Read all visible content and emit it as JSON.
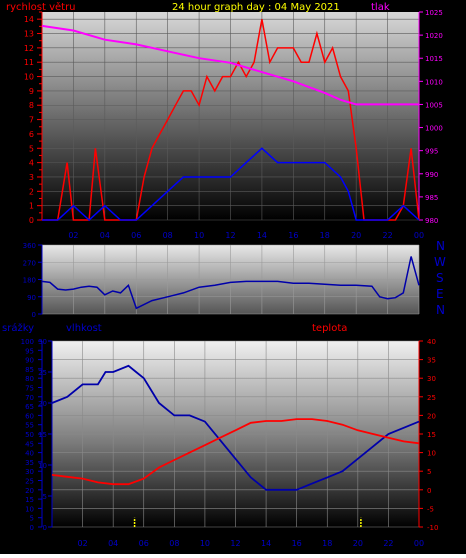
{
  "header": {
    "title": "24 hour graph day : 04 May 2021",
    "left_label": "rychlost větru",
    "right_label": "tlak"
  },
  "panel2": {
    "compass": [
      "N",
      "W",
      "S",
      "E",
      "N"
    ]
  },
  "panel3": {
    "rain_label": "srážky",
    "humidity_label": "vlhkost",
    "temp_label": "teplota"
  },
  "colors": {
    "wind": "#ff0000",
    "gust": "#0000ff",
    "pressure": "#ff00ff",
    "direction": "#0000aa",
    "humidity": "#0000aa",
    "temperature": "#ff0000",
    "rain": "#ffff00",
    "axis_left": "#ff0000",
    "axis_right": "#ff00ff",
    "axis_blue": "#0000cc"
  },
  "chart_data": [
    {
      "type": "line",
      "series": [
        {
          "name": "rychlost větru",
          "x": [
            0,
            1,
            1.6,
            2,
            3,
            3.4,
            4,
            5,
            6,
            6.5,
            7,
            7.5,
            8,
            8.5,
            9,
            9.5,
            10,
            10.5,
            11,
            11.5,
            12,
            12.5,
            13,
            13.5,
            14,
            14.5,
            15,
            15.5,
            16,
            16.5,
            17,
            17.5,
            18,
            18.5,
            19,
            19.5,
            20,
            20.5,
            21,
            22,
            22.5,
            23,
            23.5,
            24
          ],
          "values": [
            0,
            0,
            4,
            0,
            0,
            5,
            0,
            0,
            0,
            3,
            5,
            6,
            7,
            8,
            9,
            9,
            8,
            10,
            9,
            10,
            10,
            11,
            10,
            11,
            14,
            11,
            12,
            12,
            12,
            11,
            11,
            13,
            11,
            12,
            10,
            9,
            5,
            0,
            0,
            0,
            0,
            1,
            5,
            0
          ]
        },
        {
          "name": "",
          "x": [
            0,
            1,
            2,
            3,
            4,
            5,
            6,
            7,
            8,
            9,
            10,
            11,
            12,
            13,
            14,
            15,
            16,
            17,
            18,
            19,
            19.5,
            20,
            21,
            22,
            23,
            24
          ],
          "values": [
            0,
            0,
            1,
            0,
            1,
            0,
            0,
            1,
            2,
            3,
            3,
            3,
            3,
            4,
            5,
            4,
            4,
            4,
            4,
            3,
            2,
            0,
            0,
            0,
            1,
            0
          ]
        },
        {
          "name": "tlak",
          "x": [
            0,
            2,
            4,
            6,
            8,
            10,
            12,
            14,
            16,
            18,
            19,
            20,
            22,
            24
          ],
          "values": [
            1022,
            1021,
            1019,
            1018,
            1016.5,
            1015,
            1014,
            1012,
            1010,
            1007.5,
            1006,
            1005,
            1005,
            1005
          ]
        }
      ],
      "xticks": [
        "02",
        "04",
        "06",
        "08",
        "10",
        "12",
        "14",
        "16",
        "18",
        "20",
        "22",
        "00"
      ],
      "ylabel_left": "rychlost větru",
      "ylim_left": [
        0,
        14.5
      ],
      "yticks_left": [
        0,
        0.5,
        1,
        1.5,
        2,
        2.5,
        3,
        3.5,
        4,
        4.5,
        5,
        5.5,
        6,
        6.5,
        7,
        7.5,
        8,
        8.5,
        9,
        9.5,
        10,
        10.5,
        11,
        11.5,
        12,
        12.5,
        13,
        13.5,
        14,
        14.5
      ],
      "ylabel_right": "tlak",
      "ylim_right": [
        980,
        1025
      ],
      "yticks_right": [
        980,
        985,
        990,
        995,
        1000,
        1005,
        1010,
        1015,
        1020,
        1025
      ]
    },
    {
      "type": "line",
      "series": [
        {
          "name": "",
          "x": [
            0,
            0.5,
            1,
            1.5,
            2,
            2.5,
            3,
            3.5,
            4,
            4.5,
            5,
            5.5,
            6,
            7,
            8,
            9,
            10,
            11,
            12,
            13,
            14,
            15,
            16,
            17,
            18,
            19,
            20,
            21,
            21.5,
            22,
            22.5,
            23,
            23.5,
            24
          ],
          "values": [
            170,
            165,
            130,
            125,
            130,
            140,
            145,
            140,
            100,
            120,
            110,
            150,
            30,
            70,
            90,
            110,
            140,
            150,
            165,
            170,
            170,
            170,
            160,
            160,
            155,
            150,
            150,
            145,
            90,
            80,
            85,
            110,
            300,
            150
          ]
        }
      ],
      "ylim": [
        0,
        360
      ],
      "yticks": [
        0,
        90,
        180,
        270,
        360
      ]
    },
    {
      "type": "line",
      "series": [
        {
          "name": "vlhkost",
          "x": [
            0,
            1,
            2,
            3,
            3.5,
            4,
            5,
            5.5,
            6,
            7,
            8,
            9,
            10,
            11,
            12,
            13,
            14,
            15,
            16,
            17,
            18,
            19,
            20,
            21,
            22,
            23,
            24
          ],
          "values": [
            20,
            21,
            23,
            23,
            25,
            25,
            26,
            25,
            24,
            20,
            18,
            18,
            17,
            14,
            11,
            8,
            6,
            6,
            6,
            7,
            8,
            9,
            11,
            13,
            15,
            16,
            17
          ]
        },
        {
          "name": "teplota",
          "x": [
            0,
            1,
            2,
            3,
            4,
            5,
            6,
            7,
            8,
            9,
            10,
            11,
            12,
            13,
            14,
            15,
            16,
            17,
            18,
            19,
            20,
            21,
            22,
            23,
            24
          ],
          "values": [
            4,
            3.5,
            3,
            2,
            1.5,
            1.5,
            3,
            6,
            8,
            10,
            12,
            14,
            16,
            18,
            18.5,
            18.5,
            19,
            19,
            18.5,
            17.5,
            16,
            15,
            14,
            13,
            12.5
          ]
        },
        {
          "name": "srážky",
          "x": [
            5.4,
            20.2
          ],
          "values": [
            5,
            5
          ]
        }
      ],
      "xticks": [
        "02",
        "04",
        "06",
        "08",
        "10",
        "12",
        "14",
        "16",
        "18",
        "20",
        "22",
        "00"
      ],
      "ylabel_rain": "srážky",
      "ylim_rain": [
        0,
        100
      ],
      "yticks_rain": [
        0,
        5,
        10,
        15,
        20,
        25,
        30,
        35,
        40,
        45,
        50,
        55,
        60,
        65,
        70,
        75,
        80,
        85,
        90,
        95,
        100
      ],
      "ylabel_humidity": "vlhkost",
      "ylim_humidity": [
        0,
        30
      ],
      "yticks_humidity": [
        0,
        5,
        10,
        15,
        20,
        25,
        30
      ],
      "ylabel_temp": "teplota",
      "ylim_temp": [
        -10,
        40
      ],
      "yticks_temp": [
        -10,
        -5,
        0,
        5,
        10,
        15,
        20,
        25,
        30,
        35,
        40
      ]
    }
  ]
}
